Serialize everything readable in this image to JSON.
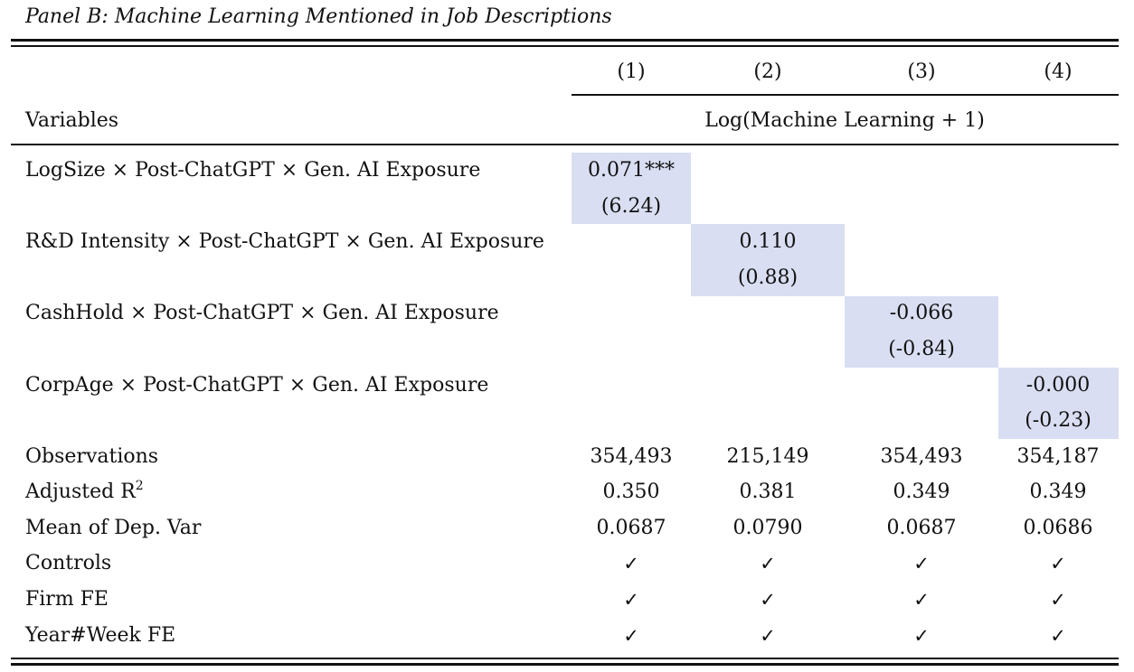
{
  "caption": "Panel B: Machine Learning Mentioned in Job Descriptions",
  "highlight_color": "#d9def2",
  "columns": [
    "(1)",
    "(2)",
    "(3)",
    "(4)"
  ],
  "header": {
    "variables_label": "Variables",
    "dep_var": "Log(Machine Learning + 1)"
  },
  "interactions": [
    {
      "label": "LogSize × Post-ChatGPT × Gen. AI Exposure",
      "coef": "0.071***",
      "tstat": "(6.24)"
    },
    {
      "label": "R&D Intensity × Post-ChatGPT × Gen. AI Exposure",
      "coef": "0.110",
      "tstat": "(0.88)"
    },
    {
      "label": "CashHold × Post-ChatGPT × Gen. AI Exposure",
      "coef": "-0.066",
      "tstat": "(-0.84)"
    },
    {
      "label": "CorpAge × Post-ChatGPT × Gen. AI Exposure",
      "coef": "-0.000",
      "tstat": "(-0.23)"
    }
  ],
  "stats": {
    "observations": {
      "label": "Observations",
      "values": [
        "354,493",
        "215,149",
        "354,493",
        "354,187"
      ]
    },
    "adj_r2": {
      "label": "Adjusted R",
      "sup": "2",
      "values": [
        "0.350",
        "0.381",
        "0.349",
        "0.349"
      ]
    },
    "mean_dep": {
      "label": "Mean of Dep. Var",
      "values": [
        "0.0687",
        "0.0790",
        "0.0687",
        "0.0686"
      ]
    }
  },
  "fixed_effects": [
    {
      "label": "Controls",
      "values": [
        "✓",
        "✓",
        "✓",
        "✓"
      ]
    },
    {
      "label": "Firm FE",
      "values": [
        "✓",
        "✓",
        "✓",
        "✓"
      ]
    },
    {
      "label": "Year#Week FE",
      "values": [
        "✓",
        "✓",
        "✓",
        "✓"
      ]
    }
  ]
}
